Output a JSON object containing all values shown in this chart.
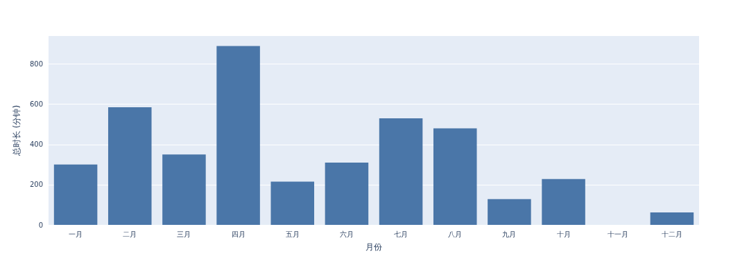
{
  "chart_data": {
    "type": "bar",
    "xlabel": "月份",
    "ylabel": "总时长 (分钟)",
    "categories": [
      "一月",
      "二月",
      "三月",
      "四月",
      "五月",
      "六月",
      "七月",
      "八月",
      "九月",
      "十月",
      "十一月",
      "十二月"
    ],
    "values": [
      300,
      585,
      350,
      890,
      215,
      310,
      530,
      480,
      128,
      228,
      0,
      62
    ],
    "color": "#4a76a8",
    "ylim": [
      0,
      940
    ],
    "yticks": [
      0,
      200,
      400,
      600,
      800
    ],
    "grid": "y"
  }
}
